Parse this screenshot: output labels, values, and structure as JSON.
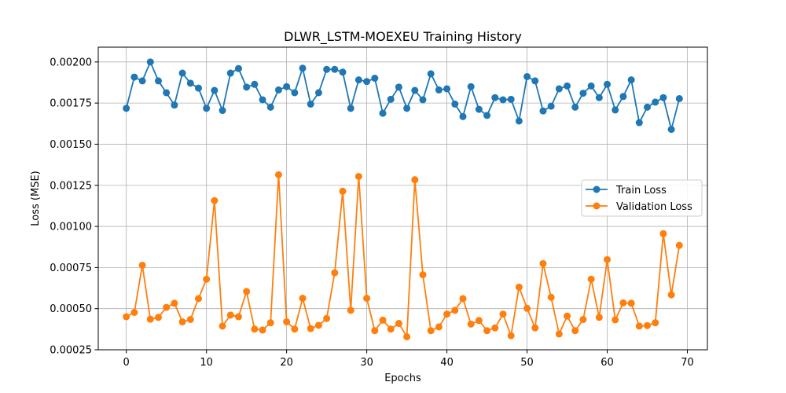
{
  "chart_data": {
    "type": "line",
    "title": "DLWR_LSTM-MOEXEU Training History",
    "xlabel": "Epochs",
    "ylabel": "Loss (MSE)",
    "xlim": [
      -3.5,
      72.5
    ],
    "ylim": [
      0.00025,
      0.00209
    ],
    "xticks": [
      0,
      10,
      20,
      30,
      40,
      50,
      60,
      70
    ],
    "yticks": [
      0.00025,
      0.0005,
      0.00075,
      0.001,
      0.00125,
      0.0015,
      0.00175,
      0.002
    ],
    "ytick_labels": [
      "0.00025",
      "0.00050",
      "0.00075",
      "0.00100",
      "0.00125",
      "0.00150",
      "0.00175",
      "0.00200"
    ],
    "grid": true,
    "legend_position": "right",
    "series": [
      {
        "name": "Train Loss",
        "color": "#1f77b4",
        "values": [
          0.001718,
          0.001908,
          0.001885,
          0.002,
          0.001885,
          0.001813,
          0.001738,
          0.001932,
          0.001871,
          0.001841,
          0.001718,
          0.001827,
          0.001705,
          0.001932,
          0.00196,
          0.001847,
          0.001864,
          0.00177,
          0.001725,
          0.00183,
          0.00185,
          0.001813,
          0.001962,
          0.001744,
          0.001813,
          0.001955,
          0.001955,
          0.001938,
          0.001718,
          0.001891,
          0.001881,
          0.001901,
          0.001688,
          0.001773,
          0.001847,
          0.001718,
          0.001827,
          0.00177,
          0.001928,
          0.00183,
          0.001837,
          0.001744,
          0.001668,
          0.00185,
          0.001712,
          0.001675,
          0.001783,
          0.00177,
          0.001773,
          0.001641,
          0.001911,
          0.001885,
          0.001702,
          0.001731,
          0.001837,
          0.001854,
          0.001725,
          0.00181,
          0.001854,
          0.001783,
          0.001864,
          0.001708,
          0.00179,
          0.001891,
          0.001631,
          0.001725,
          0.001756,
          0.001783,
          0.00159,
          0.001777
        ]
      },
      {
        "name": "Validation Loss",
        "color": "#ff7f0e",
        "values": [
          0.000451,
          0.000477,
          0.000764,
          0.000436,
          0.000447,
          0.000508,
          0.000533,
          0.00042,
          0.000434,
          0.000561,
          0.000679,
          0.001157,
          0.000394,
          0.000461,
          0.000451,
          0.000604,
          0.000376,
          0.00037,
          0.000414,
          0.001314,
          0.00042,
          0.000376,
          0.000563,
          0.000379,
          0.000399,
          0.00044,
          0.000718,
          0.001214,
          0.00049,
          0.001304,
          0.000563,
          0.000366,
          0.00043,
          0.000376,
          0.00041,
          0.000329,
          0.001284,
          0.000706,
          0.000366,
          0.000389,
          0.000467,
          0.00049,
          0.000561,
          0.000406,
          0.000428,
          0.000366,
          0.000383,
          0.000467,
          0.000336,
          0.000631,
          0.000502,
          0.000383,
          0.000774,
          0.000569,
          0.000346,
          0.000455,
          0.000366,
          0.000434,
          0.000679,
          0.000447,
          0.000798,
          0.000432,
          0.000535,
          0.000533,
          0.000394,
          0.000397,
          0.000414,
          0.000956,
          0.000584,
          0.000885
        ]
      }
    ]
  }
}
